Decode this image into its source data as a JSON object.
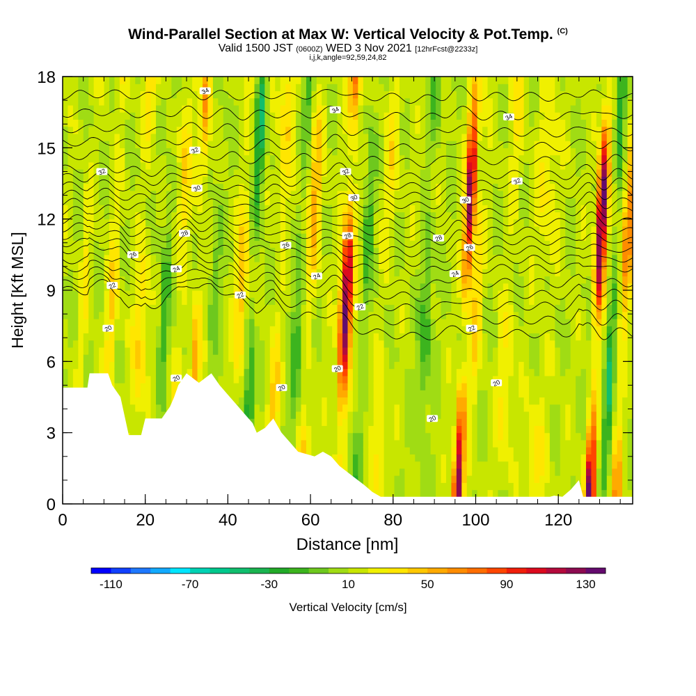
{
  "title": "Wind-Parallel Section at Max W: Vertical Velocity & Pot.Temp.",
  "copyright": "(C)",
  "subtitle": {
    "prefix": "Valid 1500 JST",
    "utc": "(0600Z)",
    "date": "WED 3 Nov 2021",
    "fcst": "[12hrFcst@2233z]"
  },
  "subtitle2": "i,j,k,angle=92,59,24,82",
  "chart_data": {
    "type": "heatmap",
    "xlabel": "Distance [nm]",
    "ylabel": "Height [Kft MSL]",
    "xlim": [
      0,
      138
    ],
    "ylim": [
      0,
      18
    ],
    "x_ticks": [
      "0",
      "20",
      "40",
      "60",
      "80",
      "100",
      "120"
    ],
    "y_ticks": [
      "0",
      "3",
      "6",
      "9",
      "12",
      "15",
      "18"
    ],
    "colorbar": {
      "label": "Vertical Velocity [cm/s]",
      "min": -120,
      "max": 140,
      "step": 10,
      "tick_labels": [
        "-110",
        "-70",
        "-30",
        "10",
        "50",
        "90",
        "130"
      ],
      "colors": [
        "#0000ff",
        "#1040ff",
        "#1e78ff",
        "#12aaff",
        "#00e6ff",
        "#00d2b4",
        "#00c88c",
        "#10be6e",
        "#1ab450",
        "#22aa28",
        "#3cb41e",
        "#6ec81e",
        "#a0dc14",
        "#c8e600",
        "#f0f000",
        "#ffe600",
        "#ffc800",
        "#ffaa00",
        "#ff8c00",
        "#ff6e00",
        "#ff4600",
        "#f01e0a",
        "#dc0a1e",
        "#b40a3c",
        "#8c0a50",
        "#640a6e"
      ]
    },
    "velocity_cores": [
      {
        "x": 3,
        "w": 1.0,
        "amp": 20
      },
      {
        "x": 10,
        "w": 1.3,
        "amp": 30
      },
      {
        "x": 17,
        "w": 1.8,
        "amp": 30
      },
      {
        "x": 22.5,
        "w": 1.2,
        "amp": -30
      },
      {
        "x": 26,
        "w": 1.5,
        "amp": 30
      },
      {
        "x": 30.5,
        "w": 1.2,
        "amp": 50
      },
      {
        "x": 34.5,
        "w": 1.2,
        "amp": -20
      },
      {
        "x": 41,
        "w": 1.4,
        "amp": 40
      },
      {
        "x": 44,
        "w": 1.2,
        "amp": -50
      },
      {
        "x": 50,
        "w": 1.6,
        "amp": 30
      },
      {
        "x": 55,
        "w": 1.3,
        "amp": -30
      },
      {
        "x": 58,
        "w": 1.6,
        "amp": 40
      },
      {
        "x": 66.5,
        "w": 1.4,
        "amp": 130
      },
      {
        "x": 71,
        "w": 1.2,
        "amp": -30
      },
      {
        "x": 76,
        "w": 1.8,
        "amp": 20
      },
      {
        "x": 86,
        "w": 1.5,
        "amp": -30
      },
      {
        "x": 95.5,
        "w": 1.2,
        "amp": 120
      },
      {
        "x": 98,
        "w": 1.3,
        "amp": 30
      },
      {
        "x": 106,
        "w": 2.0,
        "amp": 20
      },
      {
        "x": 114,
        "w": 2.5,
        "amp": 20
      },
      {
        "x": 127.5,
        "w": 1.2,
        "amp": 140
      },
      {
        "x": 131,
        "w": 1.0,
        "amp": -50
      },
      {
        "x": 134,
        "w": 1.2,
        "amp": 60
      }
    ],
    "terrain": {
      "x": [
        0,
        6,
        6.5,
        11,
        12,
        14,
        16,
        19,
        20,
        24,
        26,
        27,
        28,
        30,
        33,
        36,
        38,
        40,
        42,
        44,
        46,
        47,
        49,
        51,
        53,
        55,
        57,
        61,
        63,
        65,
        67,
        70,
        73,
        75,
        77,
        79,
        81,
        100,
        118,
        119,
        121,
        123,
        125,
        126,
        138
      ],
      "height": [
        4.9,
        4.9,
        5.5,
        5.5,
        5.0,
        4.5,
        2.9,
        2.9,
        3.6,
        3.6,
        4.1,
        4.5,
        5.0,
        5.5,
        5.1,
        5.5,
        5.0,
        4.6,
        4.2,
        3.8,
        3.4,
        3.0,
        3.2,
        3.6,
        3.0,
        2.6,
        2.2,
        2.0,
        2.2,
        2.0,
        1.6,
        1.2,
        0.8,
        0.5,
        0.3,
        0.3,
        0.3,
        0.3,
        0.3,
        0.35,
        0.3,
        0.6,
        1.0,
        0.3,
        0.3
      ]
    },
    "theta_levels": [
      20,
      22,
      24,
      26,
      28,
      30,
      32,
      34
    ],
    "theta_contours": [
      {
        "level": 20,
        "base": 7.0
      },
      {
        "level": 21,
        "base": 7.6
      },
      {
        "level": 22,
        "base": 8.2
      },
      {
        "level": 22.5,
        "base": 8.7
      },
      {
        "level": 23,
        "base": 9.2
      },
      {
        "level": 24,
        "base": 9.8
      },
      {
        "level": 25,
        "base": 10.2
      },
      {
        "level": 26,
        "base": 10.6
      },
      {
        "level": 27,
        "base": 11.0
      },
      {
        "level": 28,
        "base": 11.4
      },
      {
        "level": 28.5,
        "base": 11.8
      },
      {
        "level": 29,
        "base": 12.2
      },
      {
        "level": 30,
        "base": 12.6
      },
      {
        "level": 30.5,
        "base": 13.0
      },
      {
        "level": 31,
        "base": 13.4
      },
      {
        "level": 32,
        "base": 13.8
      },
      {
        "level": 32.5,
        "base": 14.4
      },
      {
        "level": 33,
        "base": 15.0
      },
      {
        "level": 33.5,
        "base": 15.6
      },
      {
        "level": 34,
        "base": 16.3
      },
      {
        "level": 34.5,
        "base": 17.1
      }
    ],
    "contour_labels": [
      {
        "text": "34",
        "x": 34.5,
        "y": 17.4
      },
      {
        "text": "34",
        "x": 66,
        "y": 16.6
      },
      {
        "text": "34",
        "x": 108,
        "y": 16.3
      },
      {
        "text": "32",
        "x": 32,
        "y": 14.9
      },
      {
        "text": "32",
        "x": 9.5,
        "y": 14.0
      },
      {
        "text": "32",
        "x": 68.5,
        "y": 14.0
      },
      {
        "text": "32",
        "x": 110,
        "y": 13.6
      },
      {
        "text": "30",
        "x": 32.5,
        "y": 13.3
      },
      {
        "text": "30",
        "x": 70.5,
        "y": 12.9
      },
      {
        "text": "30",
        "x": 97.5,
        "y": 12.8
      },
      {
        "text": "28",
        "x": 29.5,
        "y": 11.4
      },
      {
        "text": "28",
        "x": 69,
        "y": 11.3
      },
      {
        "text": "28",
        "x": 91,
        "y": 11.2
      },
      {
        "text": "26",
        "x": 17,
        "y": 10.5
      },
      {
        "text": "26",
        "x": 54,
        "y": 10.9
      },
      {
        "text": "26",
        "x": 98.5,
        "y": 10.8
      },
      {
        "text": "24",
        "x": 27.5,
        "y": 9.9
      },
      {
        "text": "24",
        "x": 61.5,
        "y": 9.6
      },
      {
        "text": "24",
        "x": 95,
        "y": 9.7
      },
      {
        "text": "22",
        "x": 12,
        "y": 9.2
      },
      {
        "text": "22",
        "x": 43,
        "y": 8.8
      },
      {
        "text": "22",
        "x": 72,
        "y": 8.3
      },
      {
        "text": "22",
        "x": 99,
        "y": 7.4
      },
      {
        "text": "20",
        "x": 11,
        "y": 7.4
      },
      {
        "text": "20",
        "x": 27.5,
        "y": 5.3
      },
      {
        "text": "20",
        "x": 53,
        "y": 4.9
      },
      {
        "text": "20",
        "x": 66.5,
        "y": 5.7
      },
      {
        "text": "20",
        "x": 89.5,
        "y": 3.6
      },
      {
        "text": "20",
        "x": 105,
        "y": 5.1
      }
    ]
  }
}
